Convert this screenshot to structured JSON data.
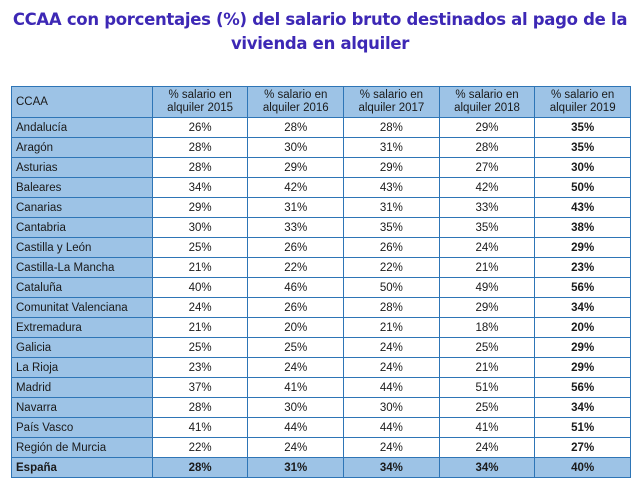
{
  "title_line1": "CCAA con porcentajes (%) del salario bruto destinados al pago de la",
  "title_line2": "vivienda en alquiler",
  "table": {
    "headers": [
      "CCAA",
      "% salario en alquiler 2015",
      "% salario en alquiler 2016",
      "% salario en alquiler 2017",
      "% salario en alquiler 2018",
      "% salario en alquiler 2019"
    ],
    "header_lines": [
      [
        "CCAA",
        ""
      ],
      [
        "% salario en",
        "alquiler 2015"
      ],
      [
        "% salario en",
        "alquiler 2016"
      ],
      [
        "% salario en",
        "alquiler 2017"
      ],
      [
        "% salario en",
        "alquiler 2018"
      ],
      [
        "% salario en",
        "alquiler 2019"
      ]
    ],
    "rows": [
      [
        "Andalucía",
        "26%",
        "28%",
        "28%",
        "29%",
        "35%"
      ],
      [
        "Aragón",
        "28%",
        "30%",
        "31%",
        "28%",
        "35%"
      ],
      [
        "Asturias",
        "28%",
        "29%",
        "29%",
        "27%",
        "30%"
      ],
      [
        "Baleares",
        "34%",
        "42%",
        "43%",
        "42%",
        "50%"
      ],
      [
        "Canarias",
        "29%",
        "31%",
        "31%",
        "33%",
        "43%"
      ],
      [
        "Cantabria",
        "30%",
        "33%",
        "35%",
        "35%",
        "38%"
      ],
      [
        "Castilla y León",
        "25%",
        "26%",
        "26%",
        "24%",
        "29%"
      ],
      [
        "Castilla-La Mancha",
        "21%",
        "22%",
        "22%",
        "21%",
        "23%"
      ],
      [
        "Cataluña",
        "40%",
        "46%",
        "50%",
        "49%",
        "56%"
      ],
      [
        "Comunitat Valenciana",
        "24%",
        "26%",
        "28%",
        "29%",
        "34%"
      ],
      [
        "Extremadura",
        "21%",
        "20%",
        "21%",
        "18%",
        "20%"
      ],
      [
        "Galicia",
        "25%",
        "25%",
        "24%",
        "25%",
        "29%"
      ],
      [
        "La Rioja",
        "23%",
        "24%",
        "24%",
        "21%",
        "29%"
      ],
      [
        "Madrid",
        "37%",
        "41%",
        "44%",
        "51%",
        "56%"
      ],
      [
        "Navarra",
        "28%",
        "30%",
        "30%",
        "25%",
        "34%"
      ],
      [
        "País Vasco",
        "41%",
        "44%",
        "44%",
        "41%",
        "51%"
      ],
      [
        "Región de Murcia",
        "22%",
        "24%",
        "24%",
        "24%",
        "27%"
      ]
    ],
    "total": [
      "España",
      "28%",
      "31%",
      "34%",
      "34%",
      "40%"
    ]
  },
  "colors": {
    "title": "#3d28b5",
    "header_bg": "#9dc3e6",
    "border": "#2e75b6"
  }
}
